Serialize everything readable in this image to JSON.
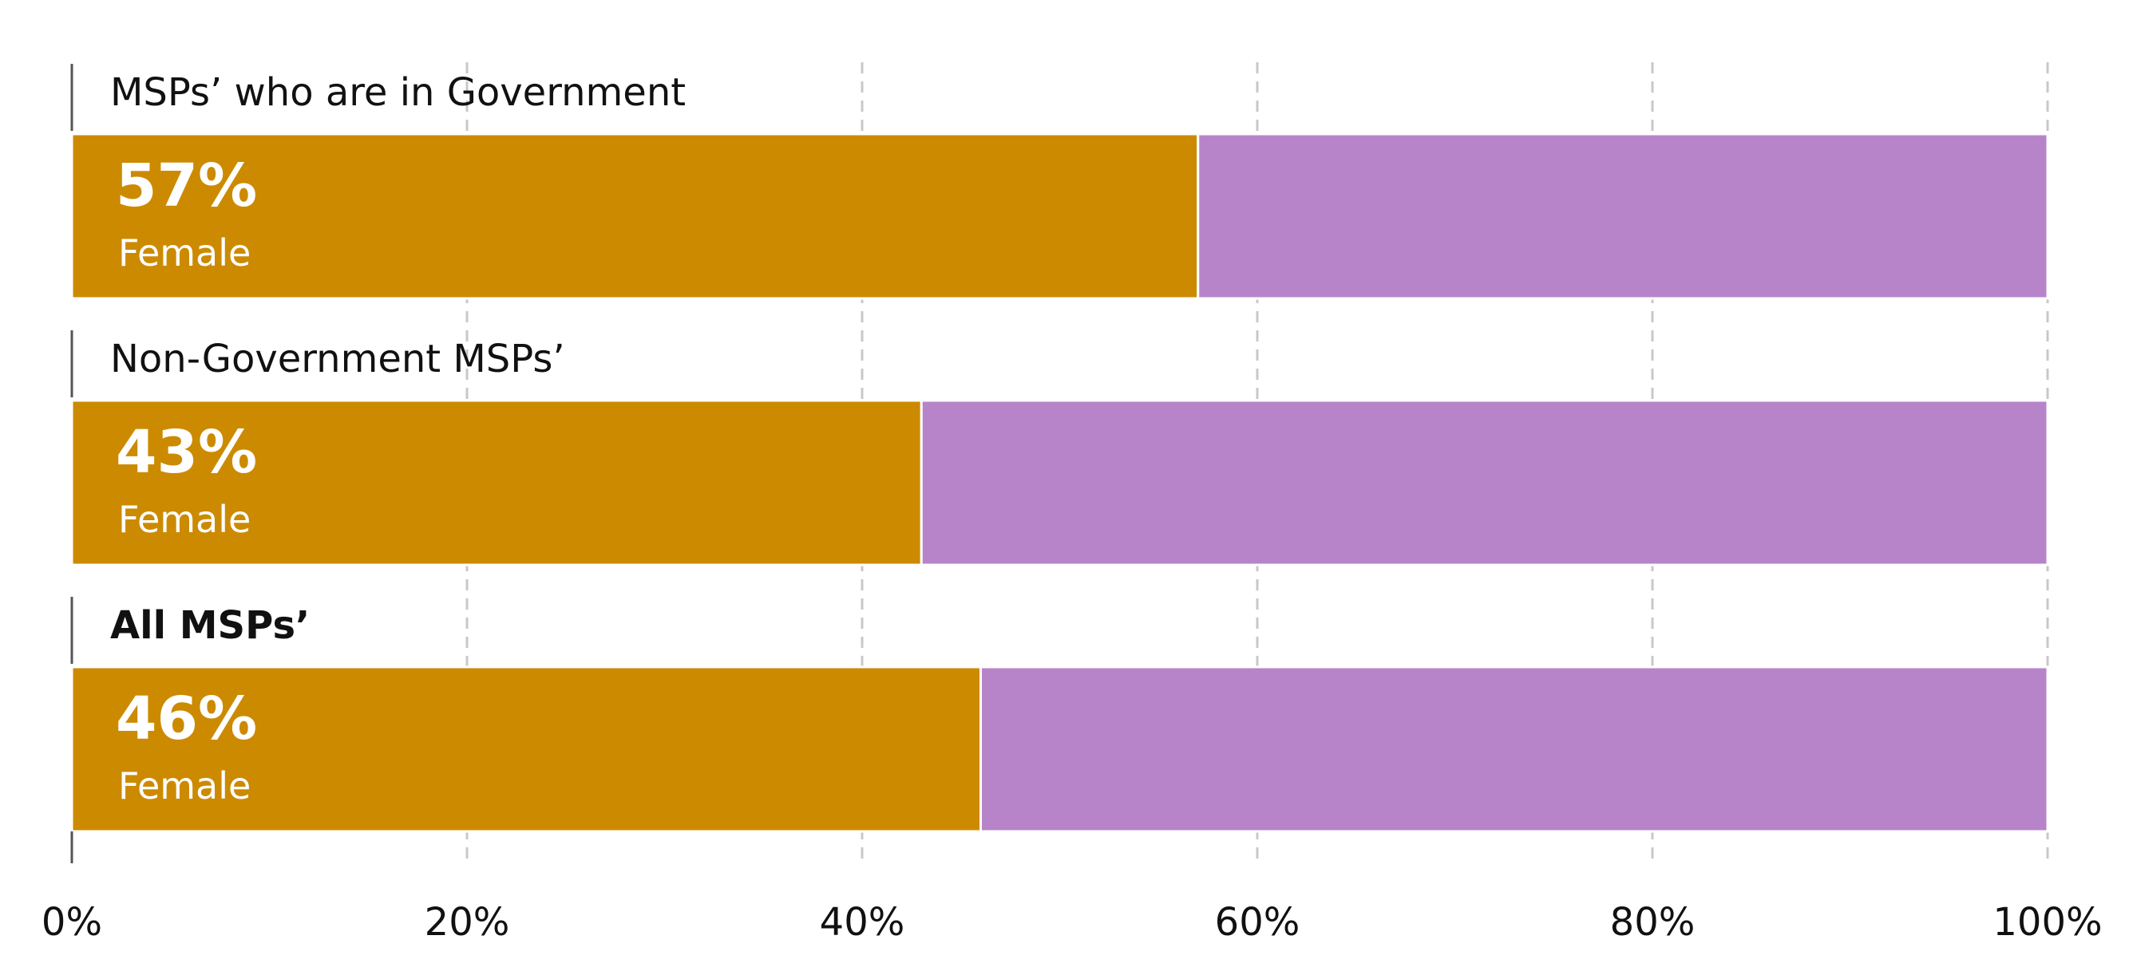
{
  "chart_data": {
    "type": "bar",
    "orientation": "horizontal",
    "stacked": true,
    "categories": [
      "MSPs’ who are in Government",
      "Non-Government MSPs’",
      "All MSPs’"
    ],
    "category_bold": [
      false,
      false,
      true
    ],
    "series": [
      {
        "values": [
          57,
          43,
          46
        ],
        "color": "#CC8A00"
      },
      {
        "values": [
          43,
          57,
          54
        ],
        "color": "#B784C9"
      }
    ],
    "data_label_suffix": "%",
    "data_label_sub": "Female",
    "xlim": [
      0,
      100
    ],
    "x_ticks": [
      0,
      20,
      40,
      60,
      80,
      100
    ],
    "x_tick_labels": [
      "0%",
      "20%",
      "40%",
      "60%",
      "80%",
      "100%"
    ],
    "grid": true,
    "legend": "none"
  }
}
